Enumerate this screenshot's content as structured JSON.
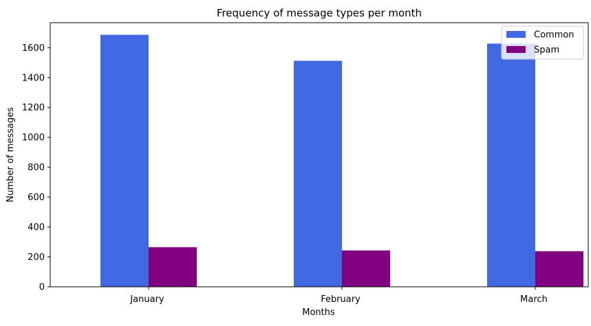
{
  "chart_data": {
    "type": "bar",
    "title": "Frequency of message types per month",
    "xlabel": "Months",
    "ylabel": "Number of messages",
    "categories": [
      "January",
      "February",
      "March"
    ],
    "series": [
      {
        "name": "Common",
        "values": [
          1686,
          1512,
          1627
        ],
        "color": "#4169e1"
      },
      {
        "name": "Spam",
        "values": [
          265,
          243,
          238
        ],
        "color": "#800080"
      }
    ],
    "ylim": [
      0,
      1767
    ],
    "yticks": [
      0,
      200,
      400,
      600,
      800,
      1000,
      1200,
      1400,
      1600
    ],
    "grid": false,
    "legend_position": "top-right"
  }
}
